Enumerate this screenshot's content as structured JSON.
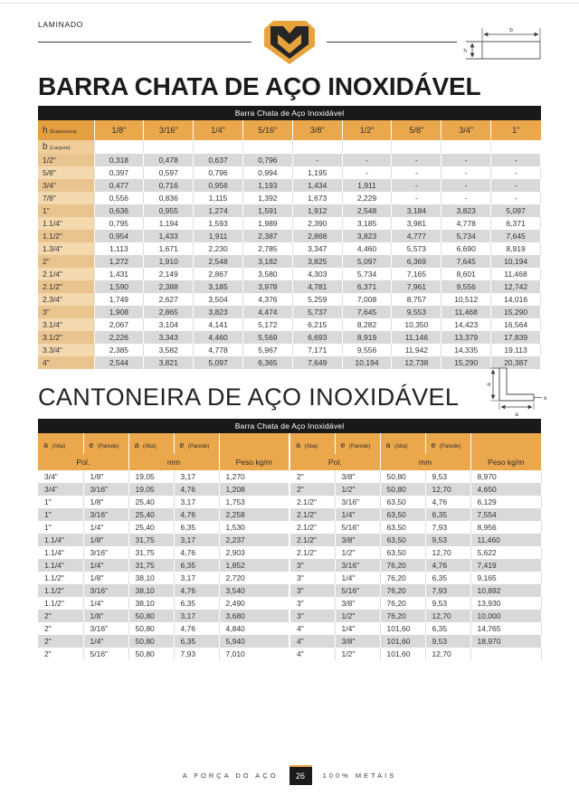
{
  "page": {
    "category": "LAMINADO",
    "footer": {
      "left_text": "A FORÇA DO AÇO",
      "page_number": "26",
      "right_text": "100% METAIS"
    }
  },
  "colors": {
    "brand_gold": "#E8A33C",
    "table_header_gold": "#EBA74B",
    "row_stripe_gray": "#D9D9D9",
    "bar_black": "#191919"
  },
  "flat_bar": {
    "title": "BARRA CHATA DE AÇO INOXIDÁVEL",
    "diagram": {
      "width_label": "b",
      "height_label": "h"
    },
    "table": {
      "caption": "Barra Chata de Aço Inoxidável",
      "corner": {
        "symbol": "h",
        "note": "(Espessura)"
      },
      "row_group": {
        "symbol": "b",
        "note": "(Largura)"
      },
      "thickness_columns": [
        "1/8\"",
        "3/16\"",
        "1/4\"",
        "5/16\"",
        "3/8\"",
        "1/2\"",
        "5/8\"",
        "3/4\"",
        "1\""
      ],
      "rows": [
        {
          "width": "1/2\"",
          "weights": [
            "0,318",
            "0,478",
            "0,637",
            "0,796",
            "-",
            "-",
            "-",
            "-",
            "-"
          ]
        },
        {
          "width": "5/8\"",
          "weights": [
            "0,397",
            "0,597",
            "0,796",
            "0,994",
            "1,195",
            "-",
            "-",
            "-",
            "-"
          ]
        },
        {
          "width": "3/4\"",
          "weights": [
            "0,477",
            "0,716",
            "0,956",
            "1,193",
            "1,434",
            "1,911",
            "-",
            "-",
            "-"
          ]
        },
        {
          "width": "7/8\"",
          "weights": [
            "0,556",
            "0,836",
            "1,115",
            "1,392",
            "1,673",
            "2,229",
            "-",
            "-",
            "-"
          ]
        },
        {
          "width": "1\"",
          "weights": [
            "0,636",
            "0,955",
            "1,274",
            "1,591",
            "1,912",
            "2,548",
            "3,184",
            "3,823",
            "5,097"
          ]
        },
        {
          "width": "1.1/4\"",
          "weights": [
            "0,795",
            "1,194",
            "1,593",
            "1,989",
            "2,390",
            "3,185",
            "3,981",
            "4,778",
            "6,371"
          ]
        },
        {
          "width": "1.1/2\"",
          "weights": [
            "0,954",
            "1,433",
            "1,911",
            "2,387",
            "2,868",
            "3,823",
            "4,777",
            "5,734",
            "7,645"
          ]
        },
        {
          "width": "1.3/4\"",
          "weights": [
            "1,113",
            "1,671",
            "2,230",
            "2,785",
            "3,347",
            "4,460",
            "5,573",
            "6,690",
            "8,919"
          ]
        },
        {
          "width": "2\"",
          "weights": [
            "1,272",
            "1,910",
            "2,548",
            "3,182",
            "3,825",
            "5,097",
            "6,369",
            "7,645",
            "10,194"
          ]
        },
        {
          "width": "2.1/4\"",
          "weights": [
            "1,431",
            "2,149",
            "2,867",
            "3,580",
            "4,303",
            "5,734",
            "7,165",
            "8,601",
            "11,468"
          ]
        },
        {
          "width": "2.1/2\"",
          "weights": [
            "1,590",
            "2,388",
            "3,185",
            "3,978",
            "4,781",
            "6,371",
            "7,961",
            "9,556",
            "12,742"
          ]
        },
        {
          "width": "2.3/4\"",
          "weights": [
            "1,749",
            "2,627",
            "3,504",
            "4,376",
            "5,259",
            "7,008",
            "8,757",
            "10,512",
            "14,016"
          ]
        },
        {
          "width": "3\"",
          "weights": [
            "1,908",
            "2,865",
            "3,823",
            "4,474",
            "5,737",
            "7,645",
            "9,553",
            "11,468",
            "15,290"
          ]
        },
        {
          "width": "3.1/4\"",
          "weights": [
            "2,067",
            "3,104",
            "4,141",
            "5,172",
            "6,215",
            "8,282",
            "10,350",
            "14,423",
            "16,564"
          ]
        },
        {
          "width": "3.1/2\"",
          "weights": [
            "2,226",
            "3,343",
            "4,460",
            "5,569",
            "6,693",
            "8,919",
            "11,146",
            "13,379",
            "17,839"
          ]
        },
        {
          "width": "3.3/4\"",
          "weights": [
            "2,385",
            "3,582",
            "4,778",
            "5,967",
            "7,171",
            "9,556",
            "11,942",
            "14,335",
            "19,113"
          ]
        },
        {
          "width": "4\"",
          "weights": [
            "2,544",
            "3,821",
            "5,097",
            "6,365",
            "7,649",
            "10,194",
            "12,738",
            "15,290",
            "20,387"
          ]
        }
      ]
    }
  },
  "angle_bar": {
    "title": "CANTONEIRA DE AÇO INOXIDÁVEL",
    "diagram": {
      "leg_label_left": "a",
      "leg_label_bottom": "a",
      "thickness_label": "e"
    },
    "table": {
      "caption": "Barra Chata de Aço Inoxidável",
      "headers": {
        "a_symbol": "a",
        "a_note": "(Aba)",
        "e_symbol": "e",
        "e_note": "(Parede)",
        "pol": "Pol.",
        "mm": "mm",
        "peso": "Peso kg/m"
      },
      "left_rows": [
        [
          "3/4\"",
          "1/8\"",
          "19,05",
          "3,17",
          "1,270"
        ],
        [
          "3/4\"",
          "3/16\"",
          "19,05",
          "4,76",
          "1,208"
        ],
        [
          "1\"",
          "1/8\"",
          "25,40",
          "3,17",
          "1,753"
        ],
        [
          "1\"",
          "3/16\"",
          "25,40",
          "4,76",
          "2,258"
        ],
        [
          "1\"",
          "1/4\"",
          "25,40",
          "6,35",
          "1,530"
        ],
        [
          "1.1/4\"",
          "1/8\"",
          "31,75",
          "3,17",
          "2,237"
        ],
        [
          "1.1/4\"",
          "3/16\"",
          "31,75",
          "4,76",
          "2,903"
        ],
        [
          "1.1/4\"",
          "1/4\"",
          "31,75",
          "6,35",
          "1,852"
        ],
        [
          "1.1/2\"",
          "1/8\"",
          "38,10",
          "3,17",
          "2,720"
        ],
        [
          "1.1/2\"",
          "3/16\"",
          "38,10",
          "4,76",
          "3,540"
        ],
        [
          "1.1/2\"",
          "1/4\"",
          "38,10",
          "6,35",
          "2,490"
        ],
        [
          "2\"",
          "1/8\"",
          "50,80",
          "3,17",
          "3,680"
        ],
        [
          "2\"",
          "3/16\"",
          "50,80",
          "4,76",
          "4,840"
        ],
        [
          "2\"",
          "1/4\"",
          "50,80",
          "6,35",
          "5,940"
        ],
        [
          "2\"",
          "5/16\"",
          "50,80",
          "7,93",
          "7,010"
        ]
      ],
      "right_rows": [
        [
          "2\"",
          "3/8\"",
          "50,80",
          "9,53",
          "8,970"
        ],
        [
          "2\"",
          "1/2\"",
          "50,80",
          "12,70",
          "4,650"
        ],
        [
          "2.1/2\"",
          "3/16\"",
          "63,50",
          "4,76",
          "6,129"
        ],
        [
          "2.1/2\"",
          "1/4\"",
          "63,50",
          "6,35",
          "7,554"
        ],
        [
          "2.1/2\"",
          "5/16\"",
          "63,50",
          "7,93",
          "8,956"
        ],
        [
          "2.1/2\"",
          "3/8\"",
          "63,50",
          "9,53",
          "11,460"
        ],
        [
          "2.1/2\"",
          "1/2\"",
          "63,50",
          "12,70",
          "5,622"
        ],
        [
          "3\"",
          "3/16\"",
          "76,20",
          "4,76",
          "7,419"
        ],
        [
          "3\"",
          "1/4\"",
          "76,20",
          "6,35",
          "9,165"
        ],
        [
          "3\"",
          "5/16\"",
          "76,20",
          "7,93",
          "10,892"
        ],
        [
          "3\"",
          "3/8\"",
          "76,20",
          "9,53",
          "13,930"
        ],
        [
          "3\"",
          "1/2\"",
          "76,20",
          "12,70",
          "10,000"
        ],
        [
          "4\"",
          "1/4\"",
          "101,60",
          "6,35",
          "14,765"
        ],
        [
          "4\"",
          "3/8\"",
          "101,60",
          "9,53",
          "18,970"
        ],
        [
          "4\"",
          "1/2\"",
          "101,60",
          "12,70",
          ""
        ]
      ]
    }
  }
}
